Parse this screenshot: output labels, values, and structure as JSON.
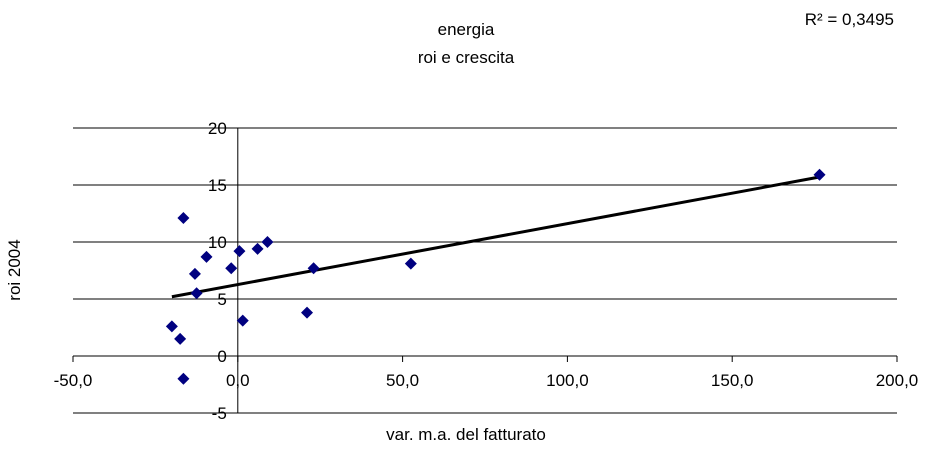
{
  "chart_data": {
    "type": "scatter",
    "title": "energia",
    "subtitle": "roi e crescita",
    "annotation": "R² = 0,3495",
    "xlabel": "var. m.a. del fatturato",
    "ylabel": "roi 2004",
    "xlim": [
      -50,
      200
    ],
    "ylim": [
      -5,
      20
    ],
    "x_ticks": [
      "-50,0",
      "0,0",
      "50,0",
      "100,0",
      "150,0",
      "200,0"
    ],
    "x_tick_values": [
      -50,
      0,
      50,
      100,
      150,
      200
    ],
    "y_ticks": [
      "-5",
      "0",
      "5",
      "10",
      "15",
      "20"
    ],
    "y_tick_values": [
      -5,
      0,
      5,
      10,
      15,
      20
    ],
    "grid": "horizontal",
    "marker_color": "#000080",
    "trendline_color": "#000000",
    "points": [
      {
        "x": -20.0,
        "y": 2.6
      },
      {
        "x": -17.5,
        "y": 1.5
      },
      {
        "x": -16.5,
        "y": -2.0
      },
      {
        "x": -16.5,
        "y": 12.1
      },
      {
        "x": -13.0,
        "y": 7.2
      },
      {
        "x": -12.5,
        "y": 5.5
      },
      {
        "x": -9.5,
        "y": 8.7
      },
      {
        "x": -2.0,
        "y": 7.7
      },
      {
        "x": 0.5,
        "y": 9.2
      },
      {
        "x": 1.5,
        "y": 3.1
      },
      {
        "x": 6.0,
        "y": 9.4
      },
      {
        "x": 9.0,
        "y": 10.0
      },
      {
        "x": 21.0,
        "y": 3.8
      },
      {
        "x": 23.0,
        "y": 7.7
      },
      {
        "x": 52.5,
        "y": 8.1
      },
      {
        "x": 176.5,
        "y": 15.9
      }
    ],
    "trendline": {
      "x": [
        -20,
        176.5
      ],
      "y": [
        5.2,
        15.7
      ]
    }
  }
}
